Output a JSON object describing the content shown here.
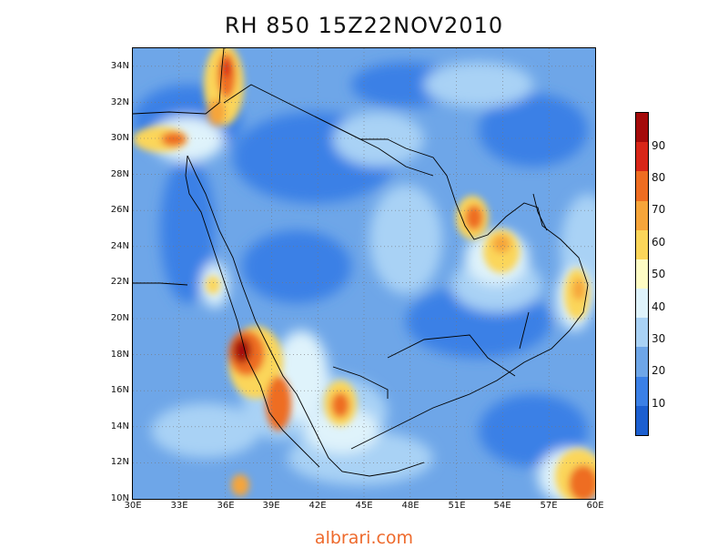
{
  "title": "RH 850  15Z22NOV2010",
  "footer": "albrari.com",
  "map": {
    "variable": "relative humidity at 850 hPa",
    "region": "Arabian Peninsula",
    "lon_range_E": [
      30,
      60
    ],
    "lat_range_N": [
      10,
      35
    ],
    "grid": "dotted",
    "x_ticks": [
      "30E",
      "33E",
      "36E",
      "39E",
      "42E",
      "45E",
      "48E",
      "51E",
      "54E",
      "57E",
      "60E"
    ],
    "y_ticks": [
      "34N",
      "32N",
      "30N",
      "28N",
      "26N",
      "24N",
      "22N",
      "20N",
      "18N",
      "16N",
      "14N",
      "12N",
      "10N"
    ]
  },
  "colorbar": {
    "labels": [
      "90",
      "80",
      "70",
      "60",
      "50",
      "40",
      "30",
      "20",
      "10"
    ],
    "colors": [
      "#1c5fd0",
      "#3b80e6",
      "#6ea6e8",
      "#a9d2f5",
      "#dff3fb",
      "#fefcc4",
      "#fbd65a",
      "#f6a53a",
      "#ee6d22",
      "#d82618",
      "#a40a0a"
    ]
  }
}
